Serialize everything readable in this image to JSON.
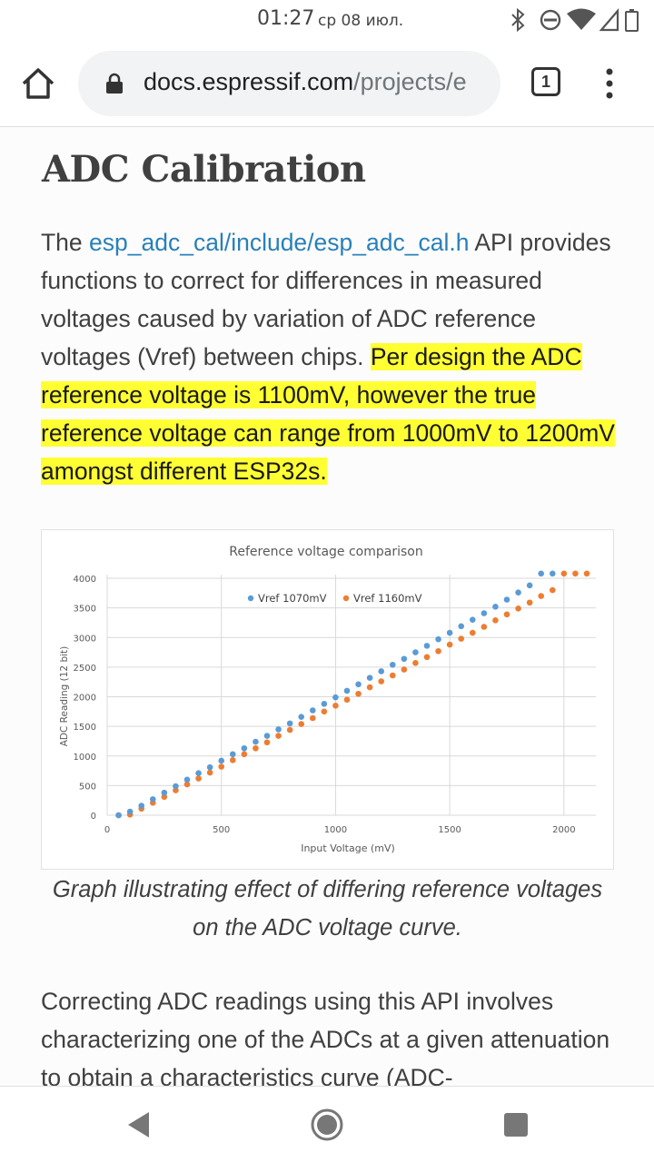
{
  "status_bar": {
    "time": "01:27",
    "date": "ср 08 июл."
  },
  "browser": {
    "url_host": "docs.espressif.com",
    "url_path": "/projects/e",
    "tab_count": "1"
  },
  "article": {
    "heading": "ADC Calibration",
    "para1_prefix": "The ",
    "para1_link": "esp_adc_cal/include/esp_adc_cal.h",
    "para1_plain": " API provides functions to correct for differences in measured voltages caused by variation of ADC reference voltages (Vref) between chips. ",
    "para1_highlight": "Per design the ADC reference voltage is 1100mV, however the true reference voltage can range from 1000mV to 1200mV amongst different ESP32s.",
    "caption": "Graph illustrating effect of differing reference voltages on the ADC voltage curve.",
    "para2": "Correcting ADC readings using this API involves characterizing one of the ADCs at a given attenuation to obtain a characteristics curve (ADC-"
  },
  "chart_data": {
    "type": "scatter",
    "title": "Reference voltage comparison",
    "xlabel": "Input Voltage (mV)",
    "ylabel": "ADC Reading (12 bit)",
    "xlim": [
      0,
      2100
    ],
    "ylim": [
      0,
      4000
    ],
    "x_ticks": [
      "0",
      "500",
      "1000",
      "1500",
      "2000"
    ],
    "y_ticks": [
      "0",
      "500",
      "1000",
      "1500",
      "2000",
      "2500",
      "3000",
      "3500",
      "4000"
    ],
    "grid": "vertical",
    "legend_position": "top-center",
    "series": [
      {
        "name": "Vref 1070mV",
        "color": "#5b9bd5",
        "x": [
          50,
          100,
          150,
          200,
          250,
          300,
          350,
          400,
          450,
          500,
          550,
          600,
          650,
          700,
          750,
          800,
          850,
          900,
          950,
          1000,
          1050,
          1100,
          1150,
          1200,
          1250,
          1300,
          1350,
          1400,
          1450,
          1500,
          1550,
          1600,
          1650,
          1700,
          1750,
          1800,
          1850,
          1900,
          1950
        ],
        "y": [
          0,
          60,
          160,
          270,
          380,
          490,
          600,
          710,
          810,
          920,
          1030,
          1130,
          1240,
          1340,
          1450,
          1550,
          1660,
          1770,
          1880,
          1990,
          2100,
          2210,
          2320,
          2430,
          2540,
          2640,
          2750,
          2860,
          2970,
          3080,
          3190,
          3300,
          3410,
          3520,
          3640,
          3760,
          3880,
          4080,
          4080
        ]
      },
      {
        "name": "Vref 1160mV",
        "color": "#ed7d31",
        "x": [
          50,
          100,
          150,
          200,
          250,
          300,
          350,
          400,
          450,
          500,
          550,
          600,
          650,
          700,
          750,
          800,
          850,
          900,
          950,
          1000,
          1050,
          1100,
          1150,
          1200,
          1250,
          1300,
          1350,
          1400,
          1450,
          1500,
          1550,
          1600,
          1650,
          1700,
          1750,
          1800,
          1850,
          1900,
          1950,
          2000,
          2050,
          2100
        ],
        "y": [
          0,
          10,
          110,
          210,
          310,
          420,
          520,
          620,
          720,
          820,
          930,
          1030,
          1130,
          1230,
          1340,
          1440,
          1540,
          1640,
          1750,
          1850,
          1950,
          2050,
          2160,
          2260,
          2360,
          2460,
          2570,
          2670,
          2770,
          2880,
          2980,
          3080,
          3180,
          3290,
          3390,
          3490,
          3590,
          3700,
          3800,
          4080,
          4080,
          4080
        ]
      }
    ]
  }
}
